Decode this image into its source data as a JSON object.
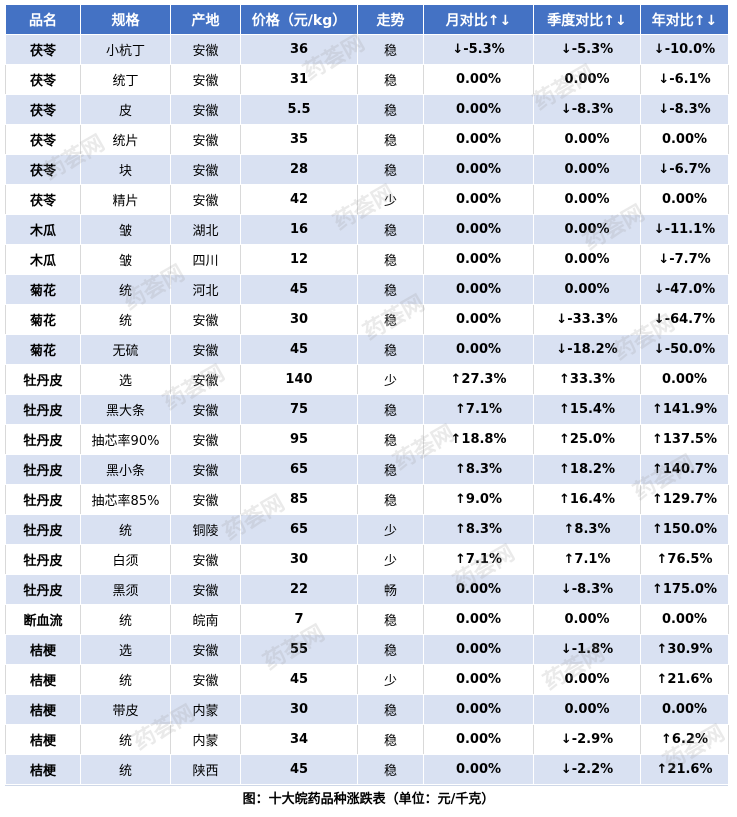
{
  "table": {
    "headers": [
      "品名",
      "规格",
      "产地",
      "价格（元/kg）",
      "走势",
      "月对比↑↓",
      "季度对比↑↓",
      "年对比↑↓"
    ],
    "rows": [
      [
        "茯苓",
        "小杭丁",
        "安徽",
        "36",
        "稳",
        "↓-5.3%",
        "↓-5.3%",
        "↓-10.0%"
      ],
      [
        "茯苓",
        "统丁",
        "安徽",
        "31",
        "稳",
        "0.00%",
        "0.00%",
        "↓-6.1%"
      ],
      [
        "茯苓",
        "皮",
        "安徽",
        "5.5",
        "稳",
        "0.00%",
        "↓-8.3%",
        "↓-8.3%"
      ],
      [
        "茯苓",
        "统片",
        "安徽",
        "35",
        "稳",
        "0.00%",
        "0.00%",
        "0.00%"
      ],
      [
        "茯苓",
        "块",
        "安徽",
        "28",
        "稳",
        "0.00%",
        "0.00%",
        "↓-6.7%"
      ],
      [
        "茯苓",
        "精片",
        "安徽",
        "42",
        "少",
        "0.00%",
        "0.00%",
        "0.00%"
      ],
      [
        "木瓜",
        "皱",
        "湖北",
        "16",
        "稳",
        "0.00%",
        "0.00%",
        "↓-11.1%"
      ],
      [
        "木瓜",
        "皱",
        "四川",
        "12",
        "稳",
        "0.00%",
        "0.00%",
        "↓-7.7%"
      ],
      [
        "菊花",
        "统",
        "河北",
        "45",
        "稳",
        "0.00%",
        "0.00%",
        "↓-47.0%"
      ],
      [
        "菊花",
        "统",
        "安徽",
        "30",
        "稳",
        "0.00%",
        "↓-33.3%",
        "↓-64.7%"
      ],
      [
        "菊花",
        "无硫",
        "安徽",
        "45",
        "稳",
        "0.00%",
        "↓-18.2%",
        "↓-50.0%"
      ],
      [
        "牡丹皮",
        "选",
        "安徽",
        "140",
        "少",
        "↑27.3%",
        "↑33.3%",
        "0.00%"
      ],
      [
        "牡丹皮",
        "黑大条",
        "安徽",
        "75",
        "稳",
        "↑7.1%",
        "↑15.4%",
        "↑141.9%"
      ],
      [
        "牡丹皮",
        "抽芯率90%",
        "安徽",
        "95",
        "稳",
        "↑18.8%",
        "↑25.0%",
        "↑137.5%"
      ],
      [
        "牡丹皮",
        "黑小条",
        "安徽",
        "65",
        "稳",
        "↑8.3%",
        "↑18.2%",
        "↑140.7%"
      ],
      [
        "牡丹皮",
        "抽芯率85%",
        "安徽",
        "85",
        "稳",
        "↑9.0%",
        "↑16.4%",
        "↑129.7%"
      ],
      [
        "牡丹皮",
        "统",
        "铜陵",
        "65",
        "少",
        "↑8.3%",
        "↑8.3%",
        "↑150.0%"
      ],
      [
        "牡丹皮",
        "白须",
        "安徽",
        "30",
        "少",
        "↑7.1%",
        "↑7.1%",
        "↑76.5%"
      ],
      [
        "牡丹皮",
        "黑须",
        "安徽",
        "22",
        "畅",
        "0.00%",
        "↓-8.3%",
        "↑175.0%"
      ],
      [
        "断血流",
        "统",
        "皖南",
        "7",
        "稳",
        "0.00%",
        "0.00%",
        "0.00%"
      ],
      [
        "桔梗",
        "选",
        "安徽",
        "55",
        "稳",
        "0.00%",
        "↓-1.8%",
        "↑30.9%"
      ],
      [
        "桔梗",
        "统",
        "安徽",
        "45",
        "少",
        "0.00%",
        "0.00%",
        "↑21.6%"
      ],
      [
        "桔梗",
        "带皮",
        "内蒙",
        "30",
        "稳",
        "0.00%",
        "0.00%",
        "0.00%"
      ],
      [
        "桔梗",
        "统",
        "内蒙",
        "34",
        "稳",
        "0.00%",
        "↓-2.9%",
        "↑6.2%"
      ],
      [
        "桔梗",
        "统",
        "陕西",
        "45",
        "稳",
        "0.00%",
        "↓-2.2%",
        "↑21.6%"
      ]
    ]
  },
  "caption": "图：十大皖药品种涨跌表（单位：元/千克）",
  "watermark": "药荟网",
  "colors": {
    "header_bg": "#4472c4",
    "row_band": "#d9e1f2",
    "down": "#1e8c1e",
    "up": "#ff5a00"
  }
}
